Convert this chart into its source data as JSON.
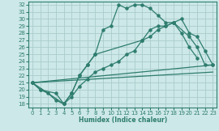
{
  "xlabel": "Humidex (Indice chaleur)",
  "background_color": "#cde8e8",
  "grid_color": "#aacccc",
  "line_color": "#2e7d6e",
  "xlim": [
    -0.5,
    23.5
  ],
  "ylim": [
    17.5,
    32.5
  ],
  "xticks": [
    0,
    1,
    2,
    3,
    4,
    5,
    6,
    7,
    8,
    9,
    10,
    11,
    12,
    13,
    14,
    15,
    16,
    17,
    18,
    19,
    20,
    21,
    22,
    23
  ],
  "yticks": [
    18,
    19,
    20,
    21,
    22,
    23,
    24,
    25,
    26,
    27,
    28,
    29,
    30,
    31,
    32
  ],
  "line1_x": [
    0,
    1,
    2,
    3,
    4,
    5,
    6,
    7,
    8,
    9,
    10,
    11,
    12,
    13,
    14,
    15,
    16,
    17,
    18,
    19,
    20,
    21
  ],
  "line1_y": [
    21.0,
    20.0,
    19.5,
    18.5,
    18.0,
    19.5,
    22.0,
    23.5,
    25.0,
    28.5,
    29.0,
    32.0,
    31.5,
    32.0,
    32.0,
    31.5,
    30.5,
    29.5,
    29.5,
    28.0,
    26.0,
    24.5
  ],
  "line2_x": [
    0,
    1,
    3,
    4,
    5,
    6,
    7,
    8,
    14,
    15,
    16,
    17,
    18,
    20,
    21,
    22,
    23
  ],
  "line2_y": [
    21.0,
    20.0,
    19.5,
    18.0,
    19.5,
    22.0,
    23.5,
    25.0,
    27.0,
    28.5,
    29.0,
    29.0,
    29.5,
    27.5,
    26.0,
    23.5,
    23.5
  ],
  "line3_x": [
    0,
    4,
    5,
    6,
    7,
    8,
    9,
    10,
    11,
    12,
    13,
    14,
    15,
    16,
    17,
    18,
    19,
    20,
    21,
    22,
    23
  ],
  "line3_y": [
    21.0,
    18.0,
    19.0,
    20.5,
    21.5,
    22.5,
    23.0,
    23.5,
    24.0,
    25.0,
    25.5,
    27.0,
    27.5,
    28.5,
    29.0,
    29.5,
    30.0,
    28.0,
    27.5,
    25.5,
    23.5
  ],
  "line4_x": [
    0,
    23
  ],
  "line4_y": [
    21.0,
    23.5
  ],
  "line5_x": [
    0,
    23
  ],
  "line5_y": [
    21.0,
    22.5
  ]
}
